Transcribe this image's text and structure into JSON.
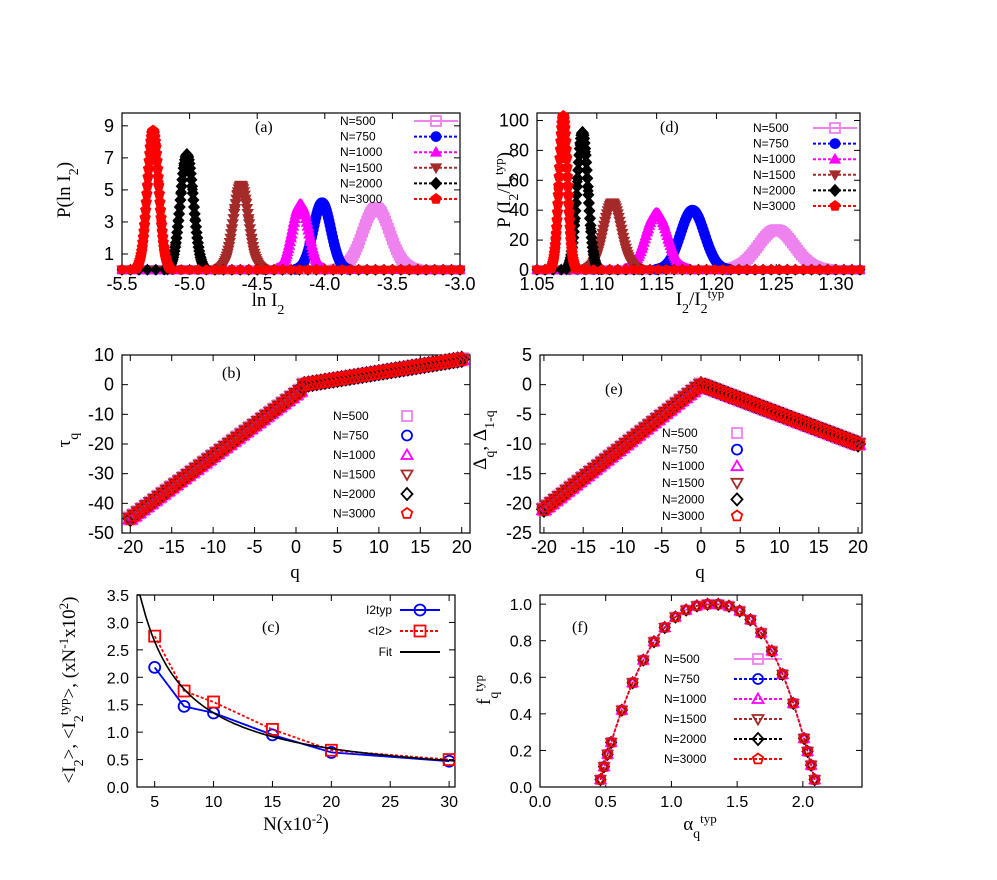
{
  "chart_data": [
    {
      "id": "a",
      "type": "line",
      "panel_label": "(a)",
      "xlabel": "ln I2",
      "ylabel": "P(ln I2)",
      "xlim": [
        -5.5,
        -3.0
      ],
      "ylim": [
        0,
        9.8
      ],
      "xticks": [
        "-5.5",
        "-5.0",
        "-4.5",
        "-4.0",
        "-3.5",
        "-3.0"
      ],
      "yticks": [
        "1",
        "3",
        "5",
        "7",
        "9"
      ],
      "legend_position": "top-right",
      "series": [
        {
          "name": "N=500",
          "color": "#ee82ee",
          "marker": "square",
          "dist": {
            "mu": -3.62,
            "sigma": 0.1,
            "peak": 3.9
          }
        },
        {
          "name": "N=750",
          "color": "#0000ff",
          "marker": "circle",
          "dist": {
            "mu": -4.02,
            "sigma": 0.065,
            "peak": 4.2
          }
        },
        {
          "name": "N=1000",
          "color": "#ff00ff",
          "marker": "triangle",
          "dist": {
            "mu": -4.18,
            "sigma": 0.06,
            "peak": 4.1
          }
        },
        {
          "name": "N=1500",
          "color": "#a52a2a",
          "marker": "tri-down",
          "dist": {
            "mu": -4.62,
            "sigma": 0.055,
            "peak": 5.3
          }
        },
        {
          "name": "N=2000",
          "color": "#000000",
          "marker": "diamond",
          "dist": {
            "mu": -5.02,
            "sigma": 0.048,
            "peak": 7.2
          }
        },
        {
          "name": "N=3000",
          "color": "#ff0000",
          "marker": "pentagon",
          "dist": {
            "mu": -5.27,
            "sigma": 0.042,
            "peak": 8.7
          }
        }
      ]
    },
    {
      "id": "d",
      "type": "line",
      "panel_label": "(d)",
      "xlabel": "I2/I2typ",
      "ylabel": "P (I2/I2typ)",
      "xlim": [
        1.05,
        1.32
      ],
      "ylim": [
        0,
        105
      ],
      "xticks": [
        "1.05",
        "1.10",
        "1.15",
        "1.20",
        "1.25",
        "1.30"
      ],
      "yticks": [
        "0",
        "20",
        "40",
        "60",
        "80",
        "100"
      ],
      "legend_position": "top-right",
      "series": [
        {
          "name": "N=500",
          "color": "#ee82ee",
          "marker": "square",
          "dist": {
            "mu": 1.25,
            "sigma": 0.015,
            "peak": 27
          }
        },
        {
          "name": "N=750",
          "color": "#0000ff",
          "marker": "circle",
          "dist": {
            "mu": 1.18,
            "sigma": 0.01,
            "peak": 40
          }
        },
        {
          "name": "N=1000",
          "color": "#ff00ff",
          "marker": "triangle",
          "dist": {
            "mu": 1.15,
            "sigma": 0.009,
            "peak": 38
          }
        },
        {
          "name": "N=1500",
          "color": "#a52a2a",
          "marker": "tri-down",
          "dist": {
            "mu": 1.113,
            "sigma": 0.0075,
            "peak": 45
          }
        },
        {
          "name": "N=2000",
          "color": "#000000",
          "marker": "diamond",
          "dist": {
            "mu": 1.088,
            "sigma": 0.0045,
            "peak": 92
          }
        },
        {
          "name": "N=3000",
          "color": "#ff0000",
          "marker": "pentagon",
          "dist": {
            "mu": 1.072,
            "sigma": 0.0035,
            "peak": 103
          }
        }
      ]
    },
    {
      "id": "b",
      "type": "scatter",
      "panel_label": "(b)",
      "xlabel": "q",
      "ylabel": "τq",
      "xlim": [
        -21,
        21
      ],
      "ylim": [
        -50,
        10
      ],
      "xticks": [
        "-20",
        "-15",
        "-10",
        "-5",
        "0",
        "5",
        "10",
        "15",
        "20"
      ],
      "yticks": [
        "10",
        "0",
        "-10",
        "-20",
        "-30",
        "-40",
        "-50"
      ],
      "legend_position": "center-right",
      "curve": {
        "kind": "tau",
        "left_slope": 2.1,
        "right_slope": 0.45
      },
      "series": [
        {
          "name": "N=500",
          "color": "#ee82ee",
          "marker": "square"
        },
        {
          "name": "N=750",
          "color": "#0000ff",
          "marker": "circle"
        },
        {
          "name": "N=1000",
          "color": "#ff00ff",
          "marker": "triangle"
        },
        {
          "name": "N=1500",
          "color": "#a52a2a",
          "marker": "tri-down"
        },
        {
          "name": "N=2000",
          "color": "#000000",
          "marker": "diamond"
        },
        {
          "name": "N=3000",
          "color": "#ff0000",
          "marker": "pentagon"
        }
      ]
    },
    {
      "id": "e",
      "type": "scatter",
      "panel_label": "(e)",
      "xlabel": "q",
      "ylabel": "Δq, Δ1-q",
      "xlim": [
        -20.5,
        20.5
      ],
      "ylim": [
        -25,
        5
      ],
      "xticks": [
        "-20",
        "-15",
        "-10",
        "-5",
        "0",
        "5",
        "10",
        "15",
        "20"
      ],
      "yticks": [
        "5",
        "0",
        "-5",
        "-10",
        "-15",
        "-20",
        "-25"
      ],
      "legend_position": "bottom-left",
      "curve": {
        "kind": "delta",
        "left_slope": 1.05,
        "right_slope": 0.5
      },
      "series": [
        {
          "name": "N=500",
          "color": "#ee82ee",
          "marker": "square"
        },
        {
          "name": "N=750",
          "color": "#0000ff",
          "marker": "circle"
        },
        {
          "name": "N=1000",
          "color": "#ff00ff",
          "marker": "triangle"
        },
        {
          "name": "N=1500",
          "color": "#a52a2a",
          "marker": "tri-down"
        },
        {
          "name": "N=2000",
          "color": "#000000",
          "marker": "diamond"
        },
        {
          "name": "N=3000",
          "color": "#ff0000",
          "marker": "pentagon"
        }
      ]
    },
    {
      "id": "c",
      "type": "line",
      "panel_label": "(c)",
      "xlabel": "N(x10-2)",
      "ylabel": "<I2>, <I2typ>, (xN-1x102)",
      "xlim": [
        3.5,
        30.5
      ],
      "ylim": [
        0,
        3.5
      ],
      "xticks": [
        "5",
        "10",
        "15",
        "20",
        "25",
        "30"
      ],
      "yticks": [
        "0.0",
        "0.5",
        "1.0",
        "1.5",
        "2.0",
        "2.5",
        "3.0",
        "3.5"
      ],
      "legend_position": "top-right",
      "series": [
        {
          "name": "I2typ",
          "color": "#0000ff",
          "marker": "circle",
          "x": [
            5,
            7.5,
            10,
            15,
            20,
            30
          ],
          "y": [
            2.18,
            1.47,
            1.35,
            0.95,
            0.63,
            0.47
          ]
        },
        {
          "name": "<I2>",
          "color": "#ff0000",
          "marker": "square",
          "dashed": true,
          "x": [
            5,
            7.5,
            10,
            15,
            20,
            30
          ],
          "y": [
            2.75,
            1.75,
            1.55,
            1.05,
            0.67,
            0.5
          ]
        },
        {
          "name": "Fit",
          "color": "#000000",
          "fit": {
            "a": 13.0,
            "p": 1.0
          }
        }
      ]
    },
    {
      "id": "f",
      "type": "line",
      "panel_label": "(f)",
      "xlabel": "αqtyp",
      "ylabel": "fqtyp",
      "xlim": [
        0.0,
        2.45
      ],
      "ylim": [
        0.0,
        1.05
      ],
      "xticks": [
        "0.0",
        "0.5",
        "1.0",
        "1.5",
        "2.0"
      ],
      "yticks": [
        "0.0",
        "0.2",
        "0.4",
        "0.6",
        "0.8",
        "1.0"
      ],
      "legend_position": "center",
      "curve": {
        "kind": "spectrum",
        "alpha0": 1.32,
        "amin": 0.46,
        "amax": 2.09,
        "fmin": 0.04
      },
      "series": [
        {
          "name": "N=500",
          "color": "#ee82ee",
          "marker": "square"
        },
        {
          "name": "N=750",
          "color": "#0000ff",
          "marker": "circle"
        },
        {
          "name": "N=1000",
          "color": "#ff00ff",
          "marker": "triangle"
        },
        {
          "name": "N=1500",
          "color": "#a52a2a",
          "marker": "tri-down"
        },
        {
          "name": "N=2000",
          "color": "#000000",
          "marker": "diamond"
        },
        {
          "name": "N=3000",
          "color": "#ff0000",
          "marker": "pentagon"
        }
      ]
    }
  ]
}
